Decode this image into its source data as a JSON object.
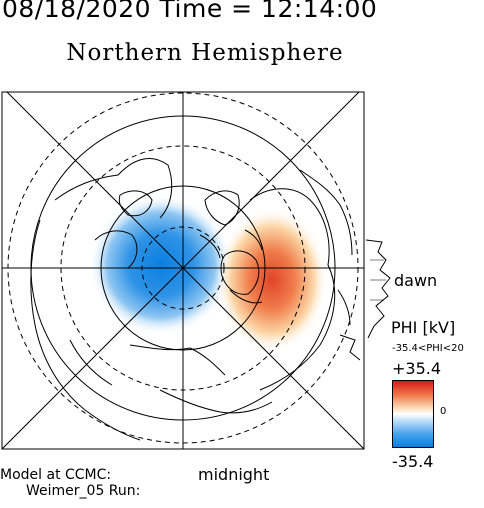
{
  "header": {
    "datetime": "08/18/2020 Time = 12:14:00",
    "title": "Northern Hemisphere"
  },
  "map": {
    "labels": {
      "dawn": "dawn",
      "midnight": "midnight"
    },
    "colors": {
      "positive": "#d7191c",
      "negative": "#0a7fe0",
      "frame": "#000000"
    }
  },
  "legend": {
    "title": "PHI [kV]",
    "range": "-35.4<PHI<20",
    "max": "+35.4",
    "zero": "0",
    "min": "-35.4"
  },
  "footer": {
    "line1": "Model at CCMC:",
    "line2": "Weimer_05 Run:"
  }
}
